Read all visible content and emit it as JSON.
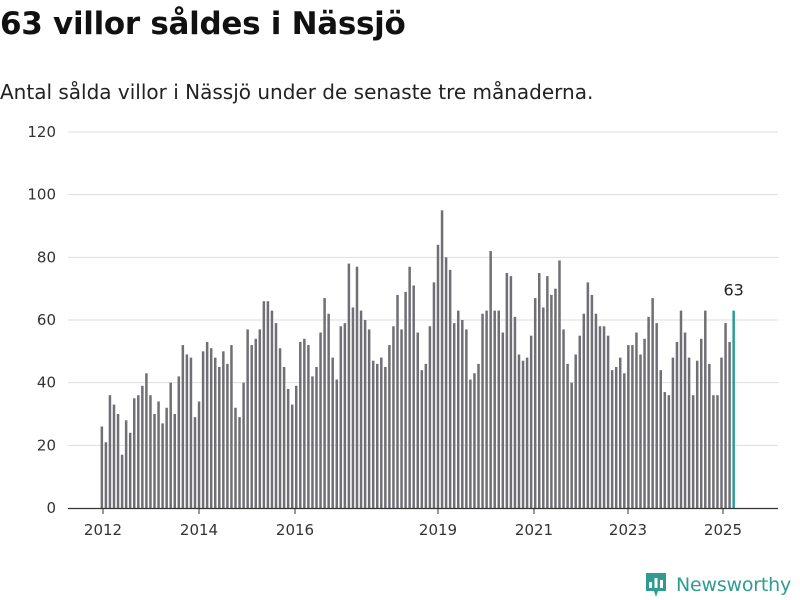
{
  "header": {
    "title": "63 villor såldes i Nässjö",
    "subtitle": "Antal sålda villor i Nässjö under de senaste tre månaderna."
  },
  "brand": {
    "name": "Newsworthy"
  },
  "colors": {
    "bar": "#706f76",
    "highlight": "#2a9d93",
    "grid": "#dddddd",
    "axis": "#333333"
  },
  "chart_data": {
    "type": "bar",
    "title": "63 villor såldes i Nässjö",
    "subtitle": "Antal sålda villor i Nässjö under de senaste tre månaderna.",
    "xlabel": "",
    "ylabel": "",
    "ylim": [
      0,
      120
    ],
    "yticks": [
      0,
      20,
      40,
      60,
      80,
      100,
      120
    ],
    "xticks": [
      "2012",
      "2014",
      "2016",
      "2019",
      "2021",
      "2023",
      "2025"
    ],
    "grid": true,
    "legend": "none",
    "highlight_label": "63",
    "values": [
      26,
      21,
      36,
      33,
      30,
      17,
      28,
      24,
      35,
      36,
      39,
      43,
      36,
      30,
      34,
      27,
      32,
      40,
      30,
      42,
      52,
      49,
      48,
      29,
      34,
      50,
      53,
      51,
      48,
      45,
      50,
      46,
      52,
      32,
      29,
      40,
      57,
      52,
      54,
      57,
      66,
      66,
      63,
      59,
      51,
      45,
      38,
      33,
      39,
      53,
      54,
      52,
      42,
      45,
      56,
      67,
      62,
      48,
      41,
      58,
      59,
      78,
      64,
      77,
      63,
      60,
      57,
      47,
      46,
      48,
      45,
      52,
      58,
      68,
      57,
      69,
      77,
      71,
      56,
      44,
      46,
      58,
      72,
      84,
      95,
      80,
      76,
      59,
      63,
      60,
      57,
      41,
      43,
      46,
      62,
      63,
      82,
      63,
      63,
      56,
      75,
      74,
      61,
      49,
      47,
      48,
      55,
      67,
      75,
      64,
      74,
      68,
      70,
      79,
      57,
      46,
      40,
      49,
      55,
      62,
      72,
      68,
      62,
      58,
      58,
      55,
      44,
      45,
      48,
      43,
      52,
      52,
      56,
      49,
      54,
      61,
      67,
      59,
      44,
      37,
      36,
      48,
      53,
      63,
      56,
      48,
      36,
      47,
      54,
      63,
      46,
      36,
      36,
      48,
      59,
      53,
      63
    ]
  }
}
